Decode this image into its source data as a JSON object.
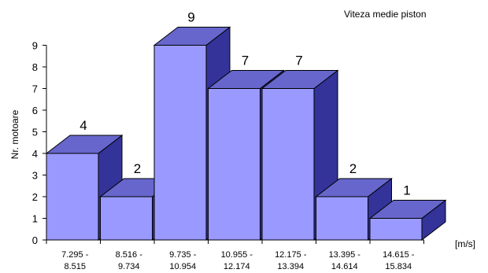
{
  "chart_data": {
    "type": "bar",
    "title": "Viteza medie piston",
    "xlabel": "[m/s]",
    "ylabel": "Nr. motoare",
    "ylim": [
      0,
      9
    ],
    "yticks": [
      0,
      1,
      2,
      3,
      4,
      5,
      6,
      7,
      8,
      9
    ],
    "grid": false,
    "legend": "none",
    "style": "3d",
    "categories": [
      "7.295 - 8.515",
      "8.516 - 9.734",
      "9.735 - 10.954",
      "10.955 - 12.174",
      "12.175 - 13.394",
      "13.395 - 14.614",
      "14.615 - 15.834"
    ],
    "category_lines": [
      [
        "7.295 -",
        "8.515"
      ],
      [
        "8.516 -",
        "9.734"
      ],
      [
        "9.735 -",
        "10.954"
      ],
      [
        "10.955 -",
        "12.174"
      ],
      [
        "12.175 -",
        "13.394"
      ],
      [
        "13.395 -",
        "14.614"
      ],
      [
        "14.615 -",
        "15.834"
      ]
    ],
    "values": [
      4,
      2,
      9,
      7,
      7,
      2,
      1
    ],
    "colors": {
      "front": "#9999ff",
      "top": "#6666cc",
      "side": "#333399",
      "edge": "#000000"
    }
  }
}
